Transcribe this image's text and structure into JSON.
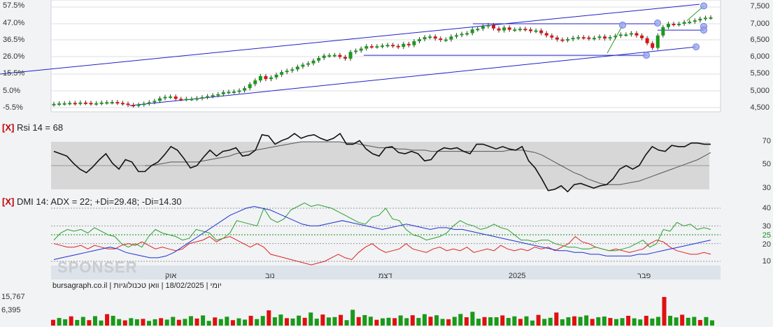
{
  "price_panel": {
    "left_pct_ticks": [
      "57.5%",
      "47.0%",
      "36.5%",
      "26.0%",
      "15.5%",
      "5.0%",
      "-5.5%"
    ],
    "right_price_ticks": [
      "7,500",
      "7,000",
      "6,500",
      "6,000",
      "5,500",
      "5,000",
      "4,500"
    ]
  },
  "rsi_panel": {
    "close_button": "[X]",
    "title": "Rsi 14 = 68",
    "ticks": [
      "70",
      "50",
      "30"
    ]
  },
  "dmi_panel": {
    "close_button": "[X]",
    "title": "DMI 14: ADX = 22; +Di=29.48; -Di=14.30",
    "ticks": [
      "40",
      "30",
      "25",
      "20",
      "10"
    ]
  },
  "time_axis": {
    "labels": [
      "אוק",
      "נוב",
      "דצמ",
      "2025",
      "פבר"
    ]
  },
  "footer": {
    "caption": "יומי | 18/02/2025 | וואן טכנולוגיות | bursagraph.co.il",
    "watermark": "SPONSER"
  },
  "volume_panel": {
    "ticks": [
      "15,767",
      "6,395"
    ]
  },
  "colors": {
    "up": "#1a9a1a",
    "down": "#e01010",
    "channel": "#2020c8",
    "rsi_line": "#111111",
    "rsi_ma": "#555555",
    "plus_di": "#2aa02a",
    "minus_di": "#e02020",
    "adx": "#2030d0"
  },
  "chart_data": [
    {
      "type": "candlestick",
      "title": "",
      "y_units": "price",
      "y_range": [
        4500,
        7500
      ],
      "series": [
        {
          "name": "close_approx",
          "values": [
            4610,
            4625,
            4630,
            4640,
            4625,
            4650,
            4640,
            4620,
            4630,
            4650,
            4660,
            4665,
            4640,
            4620,
            4580,
            4565,
            4590,
            4620,
            4660,
            4700,
            4780,
            4820,
            4830,
            4760,
            4750,
            4760,
            4760,
            4780,
            4810,
            4840,
            4870,
            4900,
            4960,
            4970,
            4980,
            5010,
            5080,
            5200,
            5310,
            5440,
            5350,
            5400,
            5480,
            5560,
            5600,
            5640,
            5720,
            5780,
            5820,
            5900,
            5980,
            6050,
            6060,
            6070,
            6010,
            5960,
            6160,
            6200,
            6260,
            6330,
            6320,
            6330,
            6350,
            6370,
            6340,
            6310,
            6400,
            6360,
            6480,
            6540,
            6600,
            6620,
            6560,
            6520,
            6530,
            6620,
            6660,
            6700,
            6720,
            6830,
            6850,
            6920,
            6960,
            6860,
            6800,
            6890,
            6820,
            6830,
            6850,
            6830,
            6780,
            6800,
            6720,
            6650,
            6590,
            6530,
            6510,
            6540,
            6580,
            6600,
            6590,
            6560,
            6580,
            6620,
            6560,
            6600,
            6640,
            6680,
            6680,
            6720,
            6650,
            6570,
            6420,
            6280,
            6650,
            6900,
            7000,
            6980,
            7000,
            7050,
            7060,
            7100,
            7150,
            7180,
            7190
          ]
        }
      ]
    },
    {
      "type": "line",
      "title": "Rsi 14 = 68",
      "y_range": [
        25,
        80
      ],
      "series": [
        {
          "name": "Rsi 14",
          "values": [
            62,
            60,
            58,
            52,
            47,
            44,
            49,
            55,
            60,
            52,
            47,
            55,
            53,
            45,
            45,
            50,
            53,
            59,
            66,
            63,
            56,
            48,
            50,
            57,
            63,
            58,
            62,
            63,
            65,
            58,
            59,
            63,
            76,
            75,
            68,
            71,
            73,
            77,
            73,
            75,
            76,
            73,
            71,
            73,
            77,
            68,
            68,
            71,
            64,
            60,
            58,
            65,
            66,
            61,
            60,
            62,
            60,
            54,
            55,
            62,
            65,
            64,
            65,
            62,
            60,
            68,
            68,
            66,
            64,
            66,
            64,
            63,
            66,
            54,
            48,
            39,
            29,
            30,
            33,
            28,
            34,
            35,
            33,
            31,
            33,
            34,
            39,
            47,
            50,
            47,
            50,
            59,
            66,
            63,
            62,
            67,
            66,
            66,
            69,
            69,
            68,
            68
          ]
        },
        {
          "name": "MA",
          "values": [
            null,
            null,
            null,
            null,
            null,
            null,
            null,
            null,
            null,
            null,
            null,
            null,
            null,
            null,
            50,
            50,
            51,
            52,
            53,
            53,
            53,
            53,
            53,
            54,
            55,
            56,
            57,
            58,
            60,
            61,
            62,
            63,
            64,
            65,
            66,
            67,
            68,
            69,
            70,
            70,
            70,
            70,
            70,
            70,
            70,
            69,
            69,
            68,
            67,
            66,
            65,
            65,
            65,
            64,
            64,
            63,
            63,
            63,
            62,
            62,
            62,
            62,
            62,
            62,
            62,
            62,
            62,
            62,
            62,
            62,
            63,
            63,
            63,
            62,
            61,
            59,
            56,
            53,
            50,
            47,
            44,
            42,
            39,
            37,
            35,
            34,
            34,
            34,
            35,
            36,
            37,
            39,
            41,
            43,
            45,
            47,
            49,
            51,
            53,
            55,
            58,
            61
          ]
        }
      ]
    },
    {
      "type": "line",
      "title": "DMI 14: ADX = 22; +Di=29.48; -Di=14.30",
      "y_range": [
        5,
        45
      ],
      "series": [
        {
          "name": "+Di",
          "values": [
            22,
            26,
            28,
            27,
            28,
            26,
            29,
            27,
            25,
            24,
            20,
            18,
            20,
            18,
            24,
            28,
            26,
            25,
            24,
            22,
            23,
            28,
            27,
            26,
            22,
            23,
            26,
            33,
            32,
            31,
            30,
            40,
            34,
            32,
            34,
            39,
            41,
            43,
            41,
            42,
            41,
            40,
            38,
            36,
            34,
            32,
            31,
            35,
            36,
            40,
            34,
            33,
            28,
            25,
            24,
            22,
            23,
            24,
            26,
            30,
            33,
            31,
            30,
            28,
            29,
            31,
            29,
            28,
            25,
            22,
            22,
            21,
            22,
            22,
            20,
            19,
            18,
            18,
            17,
            17,
            18,
            17,
            16,
            16,
            17,
            18,
            20,
            22,
            18,
            20,
            28,
            27,
            32,
            30,
            31,
            28,
            29,
            28
          ]
        },
        {
          "name": "-Di",
          "values": [
            20,
            19,
            18,
            18,
            19,
            17,
            19,
            18,
            17,
            17,
            19,
            20,
            19,
            21,
            19,
            17,
            18,
            17,
            16,
            17,
            20,
            21,
            22,
            24,
            21,
            23,
            24,
            22,
            20,
            18,
            20,
            18,
            14,
            13,
            12,
            11,
            10,
            9,
            8,
            9,
            10,
            12,
            14,
            12,
            11,
            15,
            18,
            20,
            17,
            15,
            16,
            17,
            20,
            17,
            16,
            15,
            17,
            18,
            16,
            17,
            16,
            18,
            15,
            16,
            17,
            16,
            19,
            17,
            16,
            17,
            16,
            18,
            17,
            18,
            16,
            18,
            20,
            24,
            21,
            20,
            18,
            17,
            16,
            17,
            16,
            15,
            16,
            17,
            20,
            22,
            21,
            18,
            16,
            15,
            14,
            14,
            15,
            14
          ]
        },
        {
          "name": "ADX",
          "values": [
            11,
            12,
            13,
            14,
            15,
            16,
            17,
            18,
            17,
            15,
            14,
            13,
            12,
            12,
            13,
            15,
            18,
            21,
            24,
            27,
            30,
            33,
            36,
            38,
            40,
            41,
            40,
            39,
            37,
            35,
            33,
            31,
            30,
            30,
            31,
            32,
            33,
            32,
            31,
            30,
            29,
            28,
            29,
            30,
            31,
            30,
            29,
            28,
            29,
            29,
            28,
            28,
            27,
            26,
            25,
            24,
            23,
            22,
            21,
            20,
            19,
            18,
            17,
            16,
            16,
            15,
            15,
            14,
            14,
            13,
            13,
            13,
            13,
            14,
            14,
            15,
            16,
            17,
            18,
            19,
            20,
            21,
            22
          ]
        }
      ]
    },
    {
      "type": "bar",
      "title": "",
      "y_range": [
        0,
        15767
      ],
      "series": [
        {
          "name": "volume",
          "values": [
            3200,
            4200,
            3500,
            5100,
            3100,
            4800,
            3000,
            5200,
            2800,
            6300,
            5400,
            3600,
            2900,
            4100,
            3500,
            3700,
            2600,
            3500,
            4100,
            3300,
            4800,
            3200,
            3700,
            5200,
            3900,
            5600,
            2600,
            4500,
            3600,
            4900,
            3000,
            4000,
            3300,
            5400,
            3600,
            5300,
            8400,
            4600,
            6100,
            4100,
            3900,
            5500,
            4300,
            7200,
            3800,
            6100,
            4500,
            4700,
            5900,
            3000,
            8700,
            4700,
            5800,
            4900,
            3200,
            4000,
            4300,
            4100,
            5600,
            4100,
            5700,
            4200,
            6300,
            4900,
            5700,
            3700,
            3500,
            4800,
            6400,
            4600,
            7600,
            3800,
            4700,
            4600,
            4600,
            5600,
            4200,
            5100,
            3700,
            5100,
            2800,
            5900,
            3700,
            4300,
            7200,
            3500,
            4600,
            5100,
            4800,
            5600,
            3700,
            4600,
            5000,
            4200,
            3600,
            4100,
            5400,
            4000,
            3400,
            5400,
            3900,
            4800,
            15767,
            5400,
            4500,
            6000,
            4300,
            4800,
            3100,
            4700,
            2900
          ]
        }
      ]
    }
  ]
}
